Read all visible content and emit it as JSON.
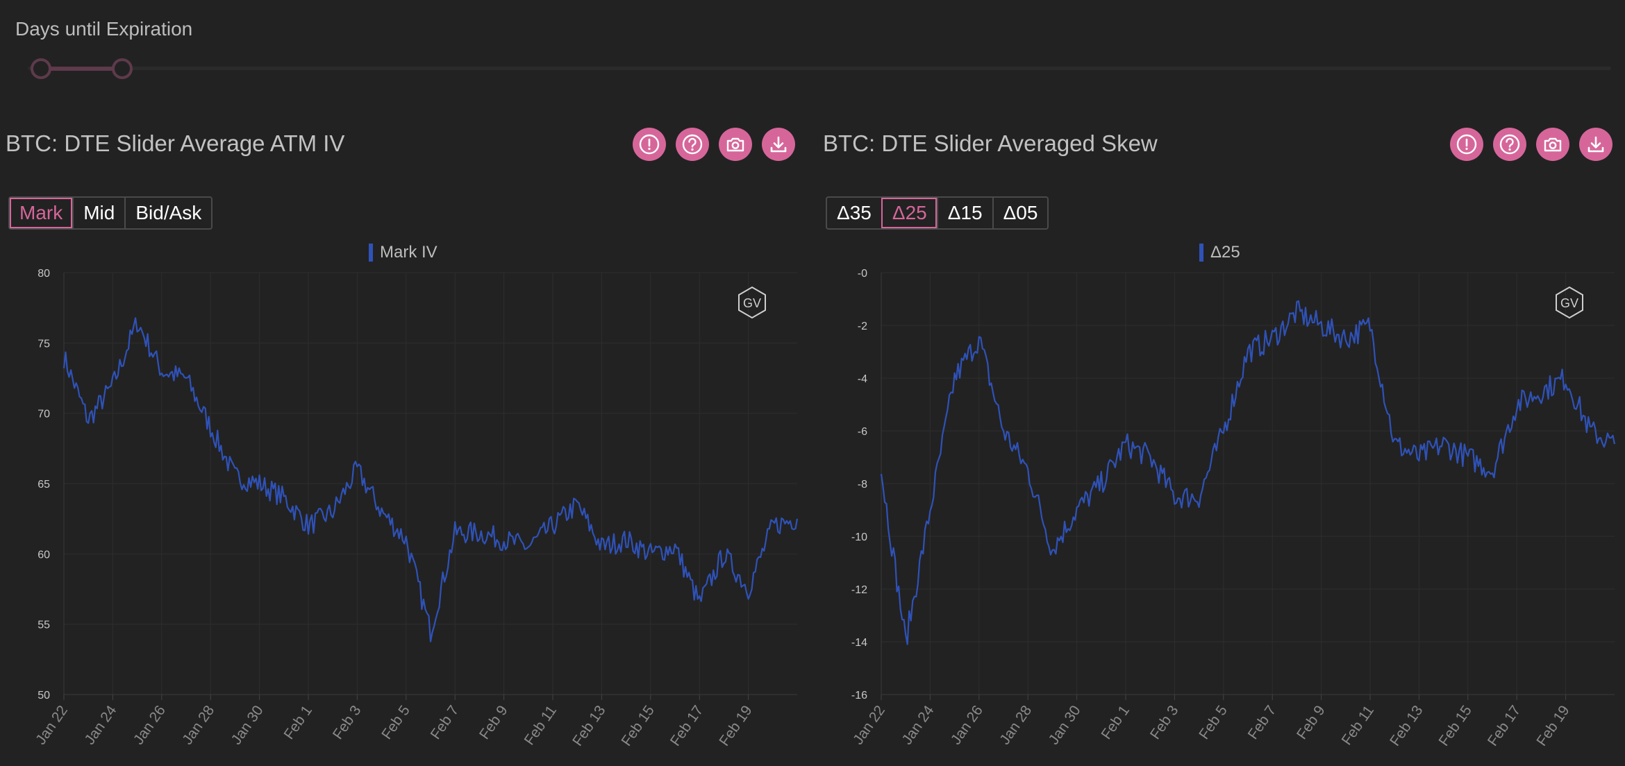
{
  "slider": {
    "label": "Days until Expiration"
  },
  "colors": {
    "accent": "#d6669a",
    "series": "#2f52b8",
    "background": "#222222"
  },
  "icons": [
    "alert-icon",
    "help-icon",
    "camera-icon",
    "download-icon"
  ],
  "chart_data": [
    {
      "type": "line",
      "title": "BTC: DTE Slider Average ATM IV",
      "options": [
        "Mark",
        "Mid",
        "Bid/Ask"
      ],
      "selected_option": "Mark",
      "series": [
        {
          "name": "Mark IV",
          "x": [
            "2024-01-22",
            "2024-01-23",
            "2024-01-24",
            "2024-01-25",
            "2024-01-26",
            "2024-01-27",
            "2024-01-28",
            "2024-01-29",
            "2024-01-30",
            "2024-01-31",
            "2024-02-01",
            "2024-02-02",
            "2024-02-03",
            "2024-02-04",
            "2024-02-05",
            "2024-02-06",
            "2024-02-07",
            "2024-02-08",
            "2024-02-09",
            "2024-02-10",
            "2024-02-11",
            "2024-02-12",
            "2024-02-13",
            "2024-02-14",
            "2024-02-15",
            "2024-02-16",
            "2024-02-17",
            "2024-02-18",
            "2024-02-19",
            "2024-02-20",
            "2024-02-21"
          ],
          "y": [
            74,
            69.5,
            72,
            76.5,
            73,
            72.5,
            69,
            65.5,
            65,
            64,
            62,
            63,
            66,
            63,
            61,
            54.5,
            61.5,
            61.5,
            61,
            60.5,
            62,
            63.5,
            60.5,
            61,
            60,
            60.5,
            56.5,
            60,
            57.5,
            62,
            62.5
          ]
        }
      ],
      "y_ticks": [
        80,
        75,
        70,
        65,
        60,
        55,
        50
      ],
      "x_ticks": [
        "Jan 22",
        "Jan 24",
        "Jan 26",
        "Jan 28",
        "Jan 30",
        "Feb 1",
        "Feb 3",
        "Feb 5",
        "Feb 7",
        "Feb 9",
        "Feb 11",
        "Feb 13",
        "Feb 15",
        "Feb 17",
        "Feb 19"
      ],
      "ylim": [
        50,
        80
      ],
      "xlim": [
        "2024-01-22",
        "2024-02-21"
      ],
      "grid": true,
      "legend_position": "top-center",
      "watermark": "GV"
    },
    {
      "type": "line",
      "title": "BTC: DTE Slider Averaged Skew",
      "options": [
        "Δ35",
        "Δ25",
        "Δ15",
        "Δ05"
      ],
      "selected_option": "Δ25",
      "series": [
        {
          "name": "Δ25",
          "x": [
            "2024-01-22",
            "2024-01-23",
            "2024-01-24",
            "2024-01-25",
            "2024-01-26",
            "2024-01-27",
            "2024-01-28",
            "2024-01-29",
            "2024-01-30",
            "2024-01-31",
            "2024-02-01",
            "2024-02-02",
            "2024-02-03",
            "2024-02-04",
            "2024-02-05",
            "2024-02-06",
            "2024-02-07",
            "2024-02-08",
            "2024-02-09",
            "2024-02-10",
            "2024-02-11",
            "2024-02-12",
            "2024-02-13",
            "2024-02-14",
            "2024-02-15",
            "2024-02-16",
            "2024-02-17",
            "2024-02-18",
            "2024-02-19",
            "2024-02-20",
            "2024-02-21"
          ],
          "y": [
            -7.5,
            -14,
            -9,
            -4,
            -2.5,
            -6,
            -7.5,
            -10.5,
            -9,
            -8,
            -6.5,
            -7,
            -8.5,
            -8.5,
            -6,
            -3,
            -2.5,
            -1.5,
            -2,
            -2.5,
            -2,
            -6.5,
            -7,
            -6.5,
            -7,
            -7.5,
            -5,
            -4.5,
            -4,
            -6,
            -6.5
          ]
        }
      ],
      "y_ticks": [
        0,
        -2,
        -4,
        -6,
        -8,
        -10,
        -12,
        -14,
        -16
      ],
      "y_tick_labels": [
        "-0",
        "-2",
        "-4",
        "-6",
        "-8",
        "-10",
        "-12",
        "-14",
        "-16"
      ],
      "x_ticks": [
        "Jan 22",
        "Jan 24",
        "Jan 26",
        "Jan 28",
        "Jan 30",
        "Feb 1",
        "Feb 3",
        "Feb 5",
        "Feb 7",
        "Feb 9",
        "Feb 11",
        "Feb 13",
        "Feb 15",
        "Feb 17",
        "Feb 19"
      ],
      "ylim": [
        -16,
        0
      ],
      "xlim": [
        "2024-01-22",
        "2024-02-21"
      ],
      "grid": true,
      "legend_position": "top-center",
      "watermark": "GV"
    }
  ]
}
